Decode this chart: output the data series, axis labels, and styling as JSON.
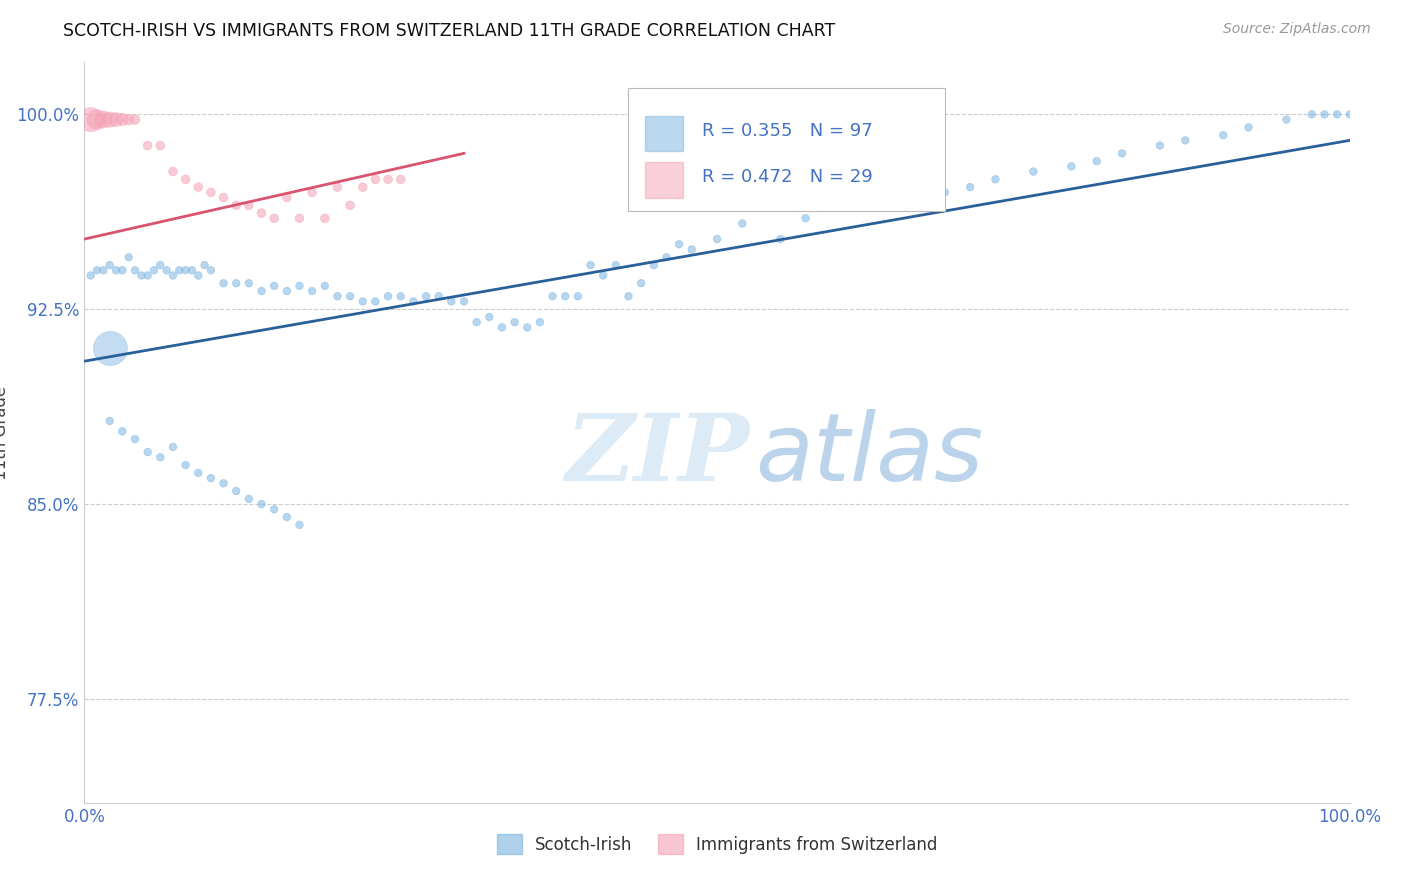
{
  "title": "SCOTCH-IRISH VS IMMIGRANTS FROM SWITZERLAND 11TH GRADE CORRELATION CHART",
  "source": "Source: ZipAtlas.com",
  "ylabel": "11th Grade",
  "xlim": [
    0.0,
    1.0
  ],
  "ylim": [
    0.735,
    1.02
  ],
  "yticks": [
    0.775,
    0.85,
    0.925,
    1.0
  ],
  "ytick_labels": [
    "77.5%",
    "85.0%",
    "92.5%",
    "100.0%"
  ],
  "xticks": [
    0.0,
    1.0
  ],
  "xtick_labels": [
    "0.0%",
    "100.0%"
  ],
  "blue_color": "#7ab3e0",
  "pink_color": "#f4a0b5",
  "blue_line_color": "#2a6099",
  "pink_line_color": "#d9546e",
  "label_color": "#4472c4",
  "r_blue": 0.355,
  "n_blue": 97,
  "r_pink": 0.472,
  "n_pink": 29,
  "blue_scatter_x": [
    0.005,
    0.01,
    0.015,
    0.02,
    0.025,
    0.03,
    0.035,
    0.04,
    0.045,
    0.05,
    0.055,
    0.06,
    0.065,
    0.07,
    0.075,
    0.08,
    0.085,
    0.09,
    0.095,
    0.1,
    0.11,
    0.12,
    0.13,
    0.14,
    0.15,
    0.16,
    0.17,
    0.18,
    0.19,
    0.2,
    0.21,
    0.22,
    0.23,
    0.24,
    0.25,
    0.26,
    0.27,
    0.28,
    0.29,
    0.3,
    0.31,
    0.32,
    0.33,
    0.34,
    0.35,
    0.36,
    0.37,
    0.38,
    0.39,
    0.4,
    0.41,
    0.42,
    0.43,
    0.44,
    0.45,
    0.46,
    0.47,
    0.48,
    0.5,
    0.52,
    0.55,
    0.57,
    0.6,
    0.62,
    0.65,
    0.68,
    0.7,
    0.72,
    0.75,
    0.78,
    0.8,
    0.82,
    0.85,
    0.87,
    0.9,
    0.92,
    0.95,
    0.97,
    0.98,
    0.99,
    1.0,
    0.02,
    0.03,
    0.04,
    0.05,
    0.06,
    0.07,
    0.08,
    0.09,
    0.1,
    0.11,
    0.12,
    0.13,
    0.14,
    0.15,
    0.16,
    0.17
  ],
  "blue_scatter_y": [
    0.938,
    0.94,
    0.94,
    0.942,
    0.94,
    0.94,
    0.945,
    0.94,
    0.938,
    0.938,
    0.94,
    0.942,
    0.94,
    0.938,
    0.94,
    0.94,
    0.94,
    0.938,
    0.942,
    0.94,
    0.935,
    0.935,
    0.935,
    0.932,
    0.934,
    0.932,
    0.934,
    0.932,
    0.934,
    0.93,
    0.93,
    0.928,
    0.928,
    0.93,
    0.93,
    0.928,
    0.93,
    0.93,
    0.928,
    0.928,
    0.92,
    0.922,
    0.918,
    0.92,
    0.918,
    0.92,
    0.93,
    0.93,
    0.93,
    0.942,
    0.938,
    0.942,
    0.93,
    0.935,
    0.942,
    0.945,
    0.95,
    0.948,
    0.952,
    0.958,
    0.952,
    0.96,
    0.964,
    0.965,
    0.968,
    0.97,
    0.972,
    0.975,
    0.978,
    0.98,
    0.982,
    0.985,
    0.988,
    0.99,
    0.992,
    0.995,
    0.998,
    1.0,
    1.0,
    1.0,
    1.0,
    0.882,
    0.878,
    0.875,
    0.87,
    0.868,
    0.872,
    0.865,
    0.862,
    0.86,
    0.858,
    0.855,
    0.852,
    0.85,
    0.848,
    0.845,
    0.842
  ],
  "blue_scatter_size": [
    30,
    30,
    30,
    30,
    30,
    30,
    30,
    30,
    30,
    30,
    30,
    30,
    30,
    30,
    30,
    30,
    30,
    30,
    30,
    30,
    30,
    30,
    30,
    30,
    30,
    30,
    30,
    30,
    30,
    30,
    30,
    30,
    30,
    30,
    30,
    30,
    30,
    30,
    30,
    30,
    30,
    30,
    30,
    30,
    30,
    30,
    30,
    30,
    30,
    30,
    30,
    30,
    30,
    30,
    30,
    30,
    30,
    30,
    30,
    30,
    30,
    30,
    30,
    30,
    30,
    30,
    30,
    30,
    30,
    30,
    30,
    30,
    30,
    30,
    30,
    30,
    30,
    30,
    30,
    30,
    30,
    30,
    30,
    30,
    30,
    30,
    30,
    30,
    30,
    30,
    30,
    30,
    30,
    30,
    30,
    30,
    30
  ],
  "blue_large_x": [
    0.02
  ],
  "blue_large_y": [
    0.91
  ],
  "blue_large_size": [
    600
  ],
  "pink_scatter_x": [
    0.005,
    0.01,
    0.015,
    0.02,
    0.025,
    0.03,
    0.035,
    0.04,
    0.05,
    0.06,
    0.07,
    0.08,
    0.09,
    0.1,
    0.11,
    0.12,
    0.13,
    0.14,
    0.15,
    0.16,
    0.17,
    0.18,
    0.19,
    0.2,
    0.21,
    0.22,
    0.23,
    0.24,
    0.25
  ],
  "pink_scatter_y": [
    0.998,
    0.998,
    0.998,
    0.998,
    0.998,
    0.998,
    0.998,
    0.998,
    0.988,
    0.988,
    0.978,
    0.975,
    0.972,
    0.97,
    0.968,
    0.965,
    0.965,
    0.962,
    0.96,
    0.968,
    0.96,
    0.97,
    0.96,
    0.972,
    0.965,
    0.972,
    0.975,
    0.975,
    0.975
  ],
  "pink_scatter_size": [
    300,
    200,
    150,
    120,
    100,
    80,
    60,
    50,
    40,
    40,
    40,
    40,
    40,
    40,
    40,
    40,
    40,
    40,
    40,
    40,
    40,
    40,
    40,
    40,
    40,
    40,
    40,
    40,
    40
  ],
  "blue_trendline_x": [
    0.0,
    1.0
  ],
  "blue_trendline_y": [
    0.905,
    0.99
  ],
  "pink_trendline_x": [
    0.0,
    0.3
  ],
  "pink_trendline_y": [
    0.952,
    0.985
  ],
  "watermark_zip": "ZIP",
  "watermark_atlas": "atlas",
  "legend_blue_label": "Scotch-Irish",
  "legend_pink_label": "Immigrants from Switzerland"
}
